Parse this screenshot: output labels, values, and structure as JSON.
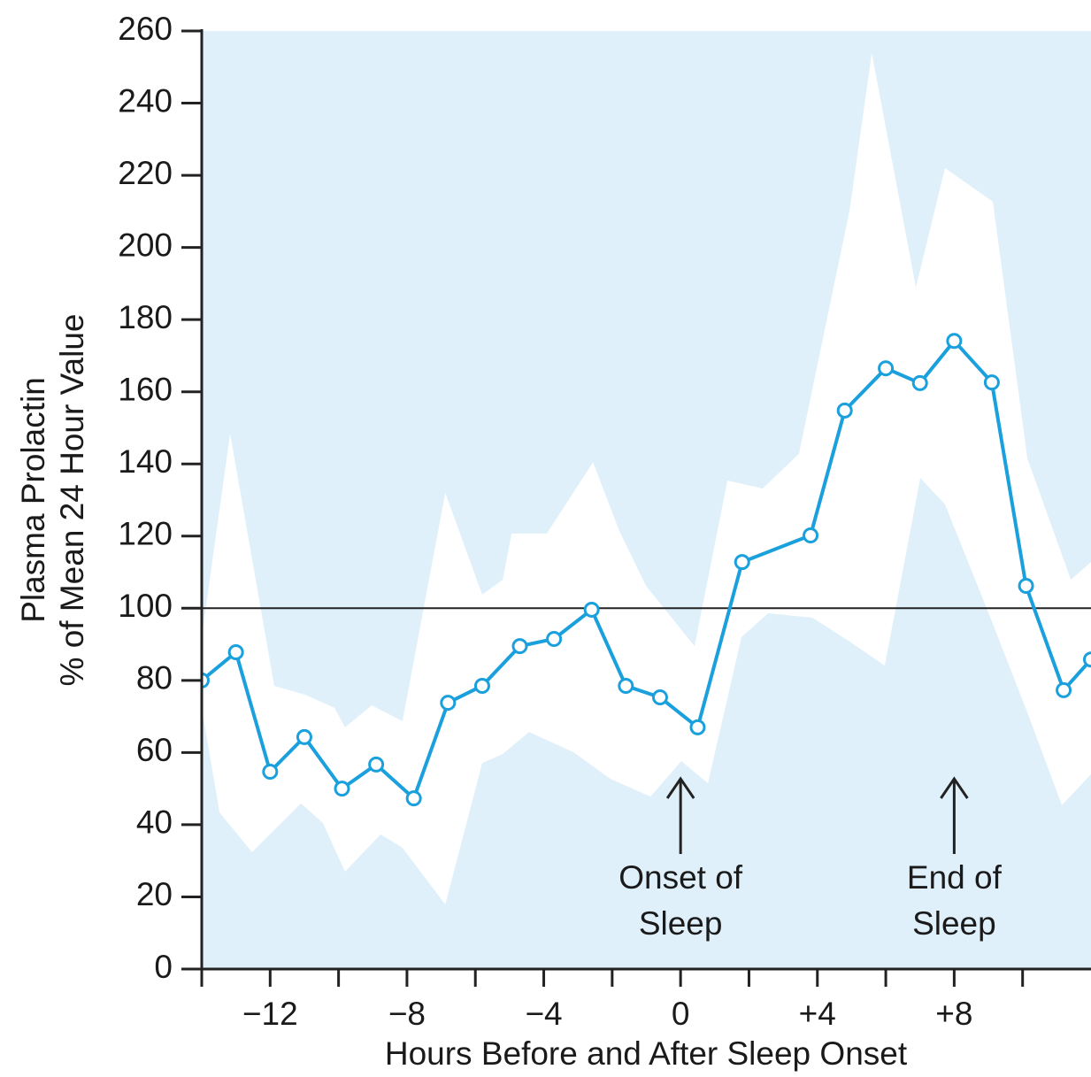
{
  "chart_data": {
    "type": "line",
    "ylabel": [
      "Plasma Prolactin",
      "% of Mean 24 Hour Value"
    ],
    "xlabel": "Hours Before and After Sleep Onset",
    "xlim": [
      -14,
      12
    ],
    "ylim": [
      0,
      260
    ],
    "yticks": [
      0,
      20,
      40,
      60,
      80,
      100,
      120,
      140,
      160,
      180,
      200,
      220,
      240,
      260
    ],
    "xticks": [
      {
        "value": -12,
        "label": "−12"
      },
      {
        "value": -8,
        "label": "−8"
      },
      {
        "value": -4,
        "label": "−4"
      },
      0,
      {
        "value": 4,
        "label": "+4"
      },
      {
        "value": 8,
        "label": "+8"
      }
    ],
    "xminorticks": [
      -14,
      -10,
      -6,
      -2,
      2,
      6,
      10
    ],
    "reference_line": 100,
    "background": "#dff0fa",
    "series": [
      {
        "color": "#1aa0dc",
        "x": [
          -14,
          -13.0,
          -12.0,
          -11.0,
          -9.9,
          -8.9,
          -7.8,
          -6.8,
          -5.8,
          -4.7,
          -3.7,
          -2.6,
          -1.6,
          -0.6,
          0.5,
          1.8,
          3.8,
          4.8,
          6.0,
          7.0,
          8.0,
          9.1,
          10.1,
          11.2,
          12.0
        ],
        "values": [
          80,
          87.8,
          54.7,
          64.3,
          50,
          56.7,
          47.3,
          73.8,
          78.5,
          89.5,
          91.5,
          99.6,
          78.5,
          75.3,
          67,
          112.8,
          120.2,
          154.8,
          166.5,
          162.4,
          174.1,
          162.6,
          106.2,
          77.3,
          85.8
        ]
      }
    ],
    "band": {
      "color": "#ffffff",
      "upper": {
        "x": [
          -14,
          -13.17,
          -11.88,
          -10.97,
          -10.12,
          -9.81,
          -9.03,
          -8.13,
          -6.88,
          -5.8,
          -5.2,
          -4.94,
          -3.91,
          -2.56,
          -1.79,
          -1.01,
          0.41,
          1.37,
          2.4,
          3.46,
          4.94,
          5.59,
          6.88,
          7.73,
          9.13,
          10.14,
          11.41,
          12.0
        ],
        "values": [
          92,
          148.4,
          78.5,
          76,
          72.4,
          67,
          73.1,
          68.7,
          132,
          103.8,
          107.9,
          120.7,
          120.7,
          140.5,
          121.4,
          106.2,
          89.5,
          135.4,
          133.2,
          142.8,
          210.2,
          253.9,
          188.9,
          222,
          212.7,
          141.5,
          107.9,
          112.8
        ]
      },
      "lower": {
        "x": [
          -14,
          -13.48,
          -12.53,
          -11.1,
          -10.46,
          -9.81,
          -8.77,
          -8.13,
          -6.88,
          -5.8,
          -5.2,
          -4.43,
          -3.13,
          -2.05,
          -0.88,
          0.02,
          0.8,
          1.78,
          2.56,
          3.85,
          4.94,
          5.97,
          7.01,
          7.73,
          9.08,
          10.14,
          11.15,
          12.0
        ],
        "values": [
          72.4,
          43.4,
          32.4,
          45.9,
          40.5,
          27,
          37.3,
          33.6,
          17.9,
          57.1,
          59.6,
          65.7,
          60.1,
          52.7,
          47.8,
          57.6,
          51.5,
          92,
          98.6,
          97.4,
          90.8,
          84.1,
          136.1,
          128.8,
          96.9,
          71.1,
          45.4,
          54
        ]
      }
    },
    "annotations": [
      {
        "text": [
          "Onset of",
          "Sleep"
        ],
        "x": 0
      },
      {
        "text": [
          "End of",
          "Sleep"
        ],
        "x": 8
      }
    ]
  }
}
